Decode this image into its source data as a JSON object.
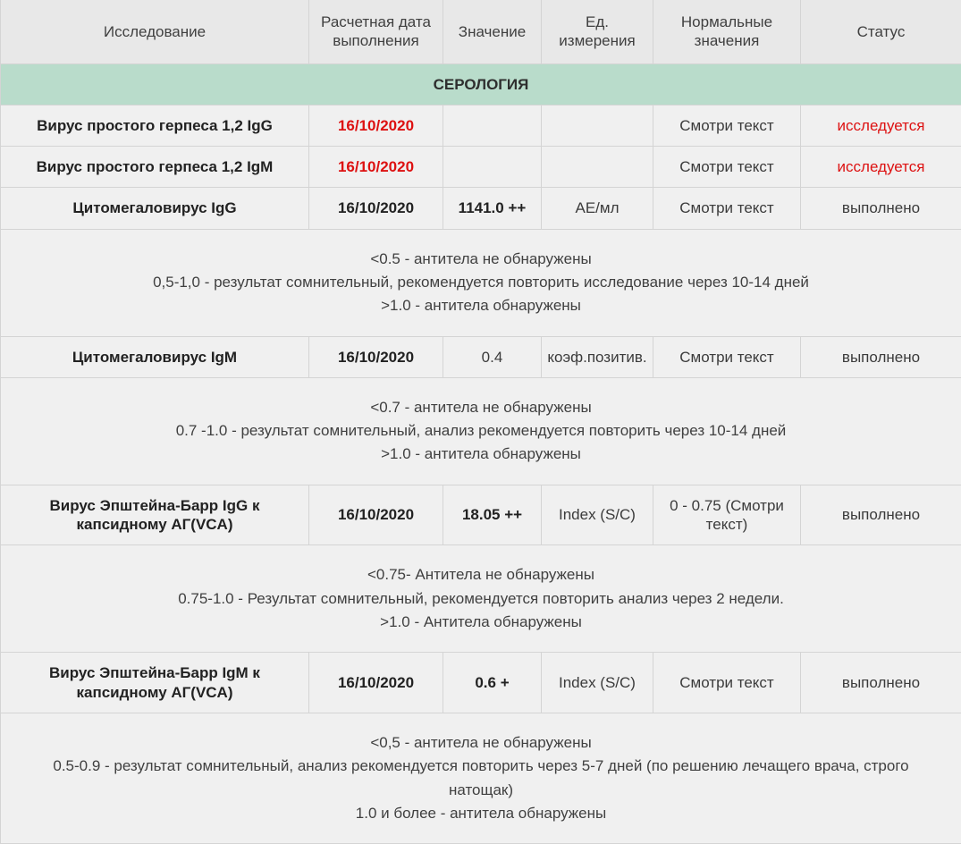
{
  "columns": {
    "c1": "Исследование",
    "c2": "Расчетная дата выполнения",
    "c3": "Значение",
    "c4": "Ед. измерения",
    "c5": "Нормальные значения",
    "c6": "Статус"
  },
  "section_title": "СЕРОЛОГИЯ",
  "rows": [
    {
      "type": "data",
      "name": "Вирус простого герпеса 1,2 IgG",
      "date": "16/10/2020",
      "date_red": true,
      "value": "",
      "unit": "",
      "normal": "Смотри текст",
      "status": "исследуется",
      "status_red": true
    },
    {
      "type": "data",
      "name": "Вирус простого герпеса 1,2 IgM",
      "date": "16/10/2020",
      "date_red": true,
      "value": "",
      "unit": "",
      "normal": "Смотри текст",
      "status": "исследуется",
      "status_red": true
    },
    {
      "type": "data",
      "name": "Цитомегаловирус IgG",
      "date": "16/10/2020",
      "date_red": false,
      "value": "1141.0 ++",
      "value_bold": true,
      "unit": "АЕ/мл",
      "normal": "Смотри текст",
      "status": "выполнено",
      "status_red": false
    },
    {
      "type": "note",
      "lines": [
        "<0.5 - антитела не обнаружены",
        "0,5-1,0 - результат сомнительный, рекомендуется повторить исследование через 10-14 дней",
        ">1.0 - антитела обнаружены"
      ]
    },
    {
      "type": "data",
      "name": "Цитомегаловирус IgM",
      "date": "16/10/2020",
      "date_red": false,
      "value": "0.4",
      "value_bold": false,
      "unit": "коэф.позитив.",
      "normal": "Смотри текст",
      "status": "выполнено",
      "status_red": false
    },
    {
      "type": "note",
      "lines": [
        "<0.7 - антитела не обнаружены",
        "0.7 -1.0 - результат сомнительный, анализ рекомендуется повторить через 10-14 дней",
        ">1.0 - антитела обнаружены"
      ]
    },
    {
      "type": "data",
      "name": "Вирус Эпштейна-Барр IgG к капсидному АГ(VCA)",
      "date": "16/10/2020",
      "date_red": false,
      "value": "18.05 ++",
      "value_bold": true,
      "unit": "Index (S/C)",
      "normal": "0 - 0.75 (Смотри текст)",
      "status": "выполнено",
      "status_red": false
    },
    {
      "type": "note",
      "lines": [
        "<0.75- Антитела не обнаружены",
        "0.75-1.0 - Результат сомнительный, рекомендуется повторить анализ через 2 недели.",
        ">1.0 - Антитела обнаружены"
      ]
    },
    {
      "type": "data",
      "name": "Вирус Эпштейна-Барр IgM к капсидному АГ(VCA)",
      "date": "16/10/2020",
      "date_red": false,
      "value": "0.6 +",
      "value_bold": true,
      "unit": "Index (S/C)",
      "normal": "Смотри текст",
      "status": "выполнено",
      "status_red": false
    },
    {
      "type": "note",
      "lines": [
        "<0,5 - антитела не обнаружены",
        "0.5-0.9 - результат сомнительный, анализ рекомендуется повторить через 5-7 дней (по решению лечащего врача, строго натощак)",
        "1.0 и более - антитела обнаружены"
      ]
    }
  ],
  "colors": {
    "header_bg": "#e8e8e8",
    "section_bg": "#b9dccb",
    "row_bg": "#f0f0f0",
    "border": "#d4d4d4",
    "text": "#3b3b3b",
    "red": "#d11"
  }
}
